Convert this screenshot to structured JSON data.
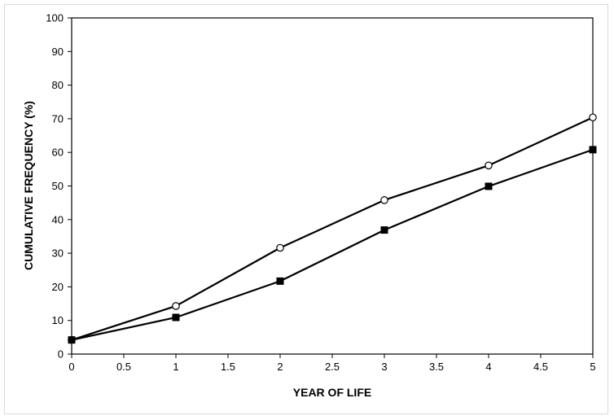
{
  "chart_data": {
    "type": "line",
    "title": "",
    "xlabel": "YEAR OF LIFE",
    "ylabel": "CUMULATIVE FREQUENCY (%)",
    "xlim": [
      0,
      5
    ],
    "ylim": [
      0,
      100
    ],
    "xticks": [
      "0",
      "0.5",
      "1",
      "1.5",
      "2",
      "2.5",
      "3",
      "3.5",
      "4",
      "4.5",
      "5"
    ],
    "yticks": [
      "0",
      "10",
      "20",
      "30",
      "40",
      "50",
      "60",
      "70",
      "80",
      "90",
      "100"
    ],
    "grid": false,
    "legend": "none",
    "series": [
      {
        "marker": "open-circle",
        "color": "#000000",
        "x": [
          0,
          1,
          2,
          3,
          4,
          5
        ],
        "y": [
          4.2,
          14.3,
          31.6,
          45.8,
          56.1,
          70.4
        ]
      },
      {
        "marker": "filled-square",
        "color": "#000000",
        "x": [
          0,
          1,
          2,
          3,
          4,
          5
        ],
        "y": [
          4.2,
          10.9,
          21.7,
          36.9,
          49.9,
          60.8
        ]
      }
    ]
  }
}
